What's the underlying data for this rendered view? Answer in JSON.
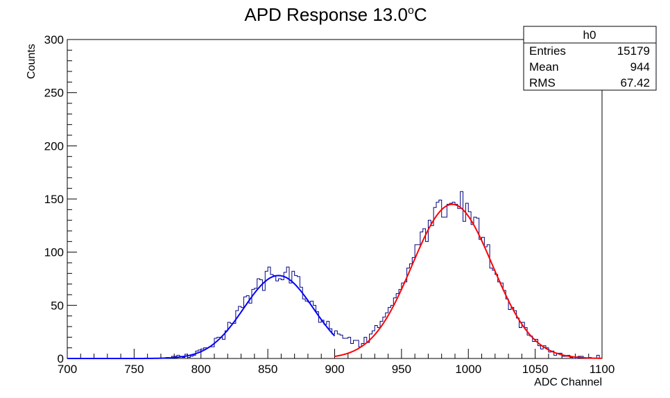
{
  "chart_data": {
    "type": "histogram",
    "title": "APD Response 13.0",
    "title_superscript": "o",
    "title_suffix": "C",
    "xlabel": "ADC Channel",
    "ylabel": "Counts",
    "xlim": [
      700,
      1100
    ],
    "ylim": [
      0,
      300
    ],
    "x_ticks": [
      "700",
      "750",
      "800",
      "850",
      "900",
      "950",
      "1000",
      "1050",
      "1100"
    ],
    "y_ticks": [
      "0",
      "50",
      "100",
      "150",
      "200",
      "250",
      "300"
    ],
    "bin_width": 2,
    "grid": false,
    "histogram_color": "#000080",
    "stats_box": {
      "name": "h0",
      "rows": [
        {
          "label": "Entries",
          "value": "15179"
        },
        {
          "label": "Mean",
          "value": "944"
        },
        {
          "label": "RMS",
          "value": "67.42"
        }
      ]
    },
    "fits": [
      {
        "type": "gaussian",
        "color": "#0000ff",
        "amplitude": 78,
        "mean": 858,
        "sigma": 26,
        "x_range": [
          700,
          900
        ]
      },
      {
        "type": "gaussian",
        "color": "#ff0000",
        "amplitude": 145,
        "mean": 988,
        "sigma": 30,
        "x_range": [
          900,
          1100
        ]
      }
    ],
    "peaks": [
      {
        "amplitude": 80,
        "mean": 858,
        "sigma": 26
      },
      {
        "amplitude": 148,
        "mean": 988,
        "sigma": 30
      }
    ]
  }
}
